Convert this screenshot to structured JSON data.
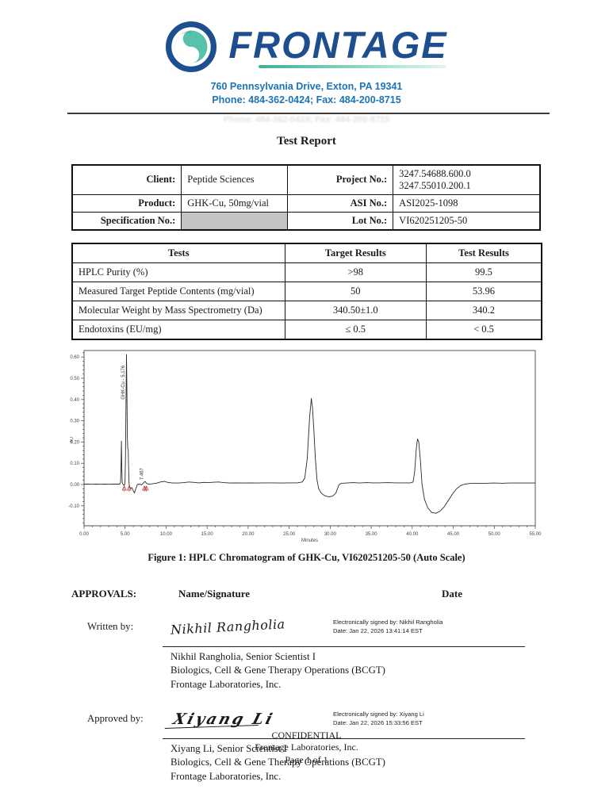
{
  "header": {
    "brand": "FRONTAGE",
    "address": "760 Pennsylvania Drive, Exton, PA 19341",
    "phone_fax": "Phone: 484-362-0424; Fax: 484-200-8715",
    "colors": {
      "navy": "#1d4f8f",
      "teal": "#58c1ab",
      "contact_blue": "#1b74b8"
    }
  },
  "title": "Test Report",
  "info_table": {
    "rows": [
      {
        "l1": "Client:",
        "v1": "Peptide Sciences",
        "l2": "Project No.:",
        "v2": "3247.54688.600.0\n3247.55010.200.1"
      },
      {
        "l1": "Product:",
        "v1": "GHK-Cu, 50mg/vial",
        "l2": "ASI No.:",
        "v2": "ASI2025-1098"
      },
      {
        "l1": "Specification No.:",
        "v1": "",
        "l2": "Lot No.:",
        "v2": "VI620251205-50"
      }
    ]
  },
  "results_table": {
    "headers": [
      "Tests",
      "Target Results",
      "Test Results"
    ],
    "rows": [
      [
        "HPLC Purity (%)",
        ">98",
        "99.5"
      ],
      [
        "Measured Target Peptide Contents (mg/vial)",
        "50",
        "53.96"
      ],
      [
        "Molecular Weight by Mass Spectrometry (Da)",
        "340.50±1.0",
        "340.2"
      ],
      [
        "Endotoxins (EU/mg)",
        "≤ 0.5",
        "< 0.5"
      ]
    ]
  },
  "chart_data": {
    "type": "line",
    "title": "",
    "caption": "Figure 1: HPLC Chromatogram of GHK-Cu, VI620251205-50 (Auto Scale)",
    "xlabel": "Minutes",
    "ylabel": "AU",
    "xlim": [
      0,
      55
    ],
    "ylim": [
      -0.2,
      0.63
    ],
    "x_ticks": [
      "0.00",
      "5.00",
      "10.00",
      "15.00",
      "20.00",
      "25.00",
      "30.00",
      "35.00",
      "40.00",
      "45.00",
      "50.00",
      "55.00"
    ],
    "y_ticks": [
      "-0.10",
      "0.00",
      "0.10",
      "0.20",
      "0.30",
      "0.40",
      "0.50",
      "0.60"
    ],
    "grid": false,
    "line_color": "#2a2a2a",
    "marker_color": "#c23a3a",
    "peaks": [
      {
        "name": "GHK-Cu",
        "rt": 5.176,
        "height": 0.61,
        "label": "GHK-Cu - 5.176"
      },
      {
        "name": "",
        "rt": 7.467,
        "height": 0.014,
        "label": "7.467"
      }
    ],
    "integration_marks": [
      4.9,
      5.5,
      7.35,
      7.6
    ],
    "trace": [
      [
        0,
        0.002
      ],
      [
        0.5,
        0.002
      ],
      [
        1,
        0.001
      ],
      [
        1.5,
        0.002
      ],
      [
        2,
        0.001
      ],
      [
        2.5,
        0.002
      ],
      [
        3,
        0.001
      ],
      [
        3.5,
        0.002
      ],
      [
        4,
        0.002
      ],
      [
        4.35,
        0.002
      ],
      [
        4.45,
        0.01
      ],
      [
        4.5,
        0.08
      ],
      [
        4.55,
        0.205
      ],
      [
        4.6,
        0.08
      ],
      [
        4.65,
        0.01
      ],
      [
        4.75,
        0.002
      ],
      [
        4.85,
        -0.004
      ],
      [
        4.95,
        0.0
      ],
      [
        5.0,
        0.02
      ],
      [
        5.05,
        0.12
      ],
      [
        5.1,
        0.35
      ],
      [
        5.176,
        0.612
      ],
      [
        5.22,
        0.45
      ],
      [
        5.28,
        0.22
      ],
      [
        5.33,
        0.17
      ],
      [
        5.38,
        0.165
      ],
      [
        5.42,
        0.09
      ],
      [
        5.48,
        0.01
      ],
      [
        5.55,
        -0.012
      ],
      [
        5.7,
        -0.018
      ],
      [
        5.85,
        -0.015
      ],
      [
        6.0,
        -0.03
      ],
      [
        6.15,
        -0.04
      ],
      [
        6.3,
        -0.02
      ],
      [
        6.5,
        0.0
      ],
      [
        6.8,
        0.002
      ],
      [
        7.0,
        -0.002
      ],
      [
        7.2,
        0.006
      ],
      [
        7.35,
        0.012
      ],
      [
        7.467,
        0.014
      ],
      [
        7.6,
        0.006
      ],
      [
        7.8,
        0.002
      ],
      [
        8.2,
        0.003
      ],
      [
        8.8,
        0.006
      ],
      [
        9.3,
        0.012
      ],
      [
        9.8,
        0.015
      ],
      [
        10.2,
        0.01
      ],
      [
        10.8,
        0.007
      ],
      [
        11.5,
        0.007
      ],
      [
        12.2,
        0.009
      ],
      [
        12.8,
        0.012
      ],
      [
        13.4,
        0.01
      ],
      [
        14,
        0.008
      ],
      [
        14.6,
        0.01
      ],
      [
        15.2,
        0.009
      ],
      [
        15.8,
        0.011
      ],
      [
        16.4,
        0.012
      ],
      [
        17,
        0.009
      ],
      [
        17.8,
        0.007
      ],
      [
        18.6,
        0.008
      ],
      [
        19.4,
        0.007
      ],
      [
        20.2,
        0.008
      ],
      [
        21,
        0.007
      ],
      [
        22,
        0.008
      ],
      [
        23,
        0.008
      ],
      [
        24,
        0.007
      ],
      [
        25,
        0.008
      ],
      [
        26,
        0.008
      ],
      [
        26.6,
        0.012
      ],
      [
        26.9,
        0.03
      ],
      [
        27.2,
        0.12
      ],
      [
        27.5,
        0.32
      ],
      [
        27.7,
        0.405
      ],
      [
        27.85,
        0.36
      ],
      [
        28.0,
        0.26
      ],
      [
        28.2,
        0.12
      ],
      [
        28.4,
        0.02
      ],
      [
        28.6,
        -0.02
      ],
      [
        28.9,
        -0.04
      ],
      [
        29.3,
        -0.052
      ],
      [
        29.8,
        -0.058
      ],
      [
        30.3,
        -0.055
      ],
      [
        30.7,
        -0.04
      ],
      [
        30.9,
        -0.018
      ],
      [
        31.1,
        0.0
      ],
      [
        31.4,
        0.006
      ],
      [
        32,
        0.007
      ],
      [
        32.8,
        0.009
      ],
      [
        33.6,
        0.007
      ],
      [
        34.4,
        0.009
      ],
      [
        35.2,
        0.008
      ],
      [
        36,
        0.008
      ],
      [
        37,
        0.009
      ],
      [
        38,
        0.008
      ],
      [
        39,
        0.008
      ],
      [
        39.8,
        0.008
      ],
      [
        40.1,
        0.012
      ],
      [
        40.3,
        0.06
      ],
      [
        40.5,
        0.17
      ],
      [
        40.65,
        0.215
      ],
      [
        40.8,
        0.2
      ],
      [
        41.0,
        0.11
      ],
      [
        41.2,
        0.0
      ],
      [
        41.5,
        -0.07
      ],
      [
        41.9,
        -0.11
      ],
      [
        42.4,
        -0.132
      ],
      [
        42.9,
        -0.135
      ],
      [
        43.4,
        -0.125
      ],
      [
        43.9,
        -0.105
      ],
      [
        44.4,
        -0.075
      ],
      [
        44.9,
        -0.045
      ],
      [
        45.4,
        -0.02
      ],
      [
        45.9,
        -0.005
      ],
      [
        46.4,
        0.002
      ],
      [
        47,
        0.005
      ],
      [
        48,
        0.006
      ],
      [
        49,
        0.006
      ],
      [
        50,
        0.007
      ],
      [
        51,
        0.006
      ],
      [
        52,
        0.007
      ],
      [
        53,
        0.007
      ],
      [
        54,
        0.007
      ],
      [
        55,
        0.007
      ]
    ]
  },
  "approvals": {
    "heading": "APPROVALS:",
    "col_name": "Name/Signature",
    "col_date": "Date",
    "entries": [
      {
        "role": "Written by:",
        "signature": "Nikhil Rangholia",
        "esign_line1": "Electronically signed by: Nikhil Rangholia",
        "esign_line2": "Date: Jan 22, 2026 13:41:14 EST",
        "name_line1": "Nikhil Rangholia, Senior Scientist I",
        "name_line2": "Biologics, Cell & Gene Therapy Operations (BCGT)",
        "name_line3": "Frontage Laboratories, Inc."
      },
      {
        "role": "Approved by:",
        "signature": "Xiyang Li",
        "esign_line1": "Electronically signed by: Xiyang Li",
        "esign_line2": "Date: Jan 22, 2026 15:33:56 EST",
        "name_line1": "Xiyang Li, Senior Scientist I",
        "name_line2": "Biologics, Cell & Gene Therapy Operations (BCGT)",
        "name_line3": "Frontage Laboratories, Inc."
      }
    ]
  },
  "footer": {
    "line1": "CONFIDENTIAL",
    "line2": "Frontage Laboratories, Inc.",
    "line3": "Page 1 of 1"
  }
}
